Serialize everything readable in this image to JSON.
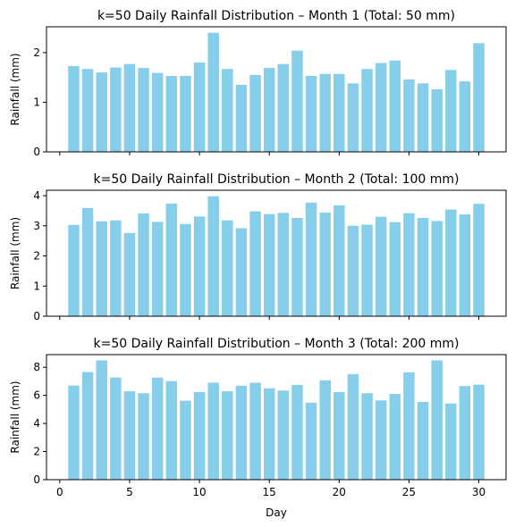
{
  "chart_data": [
    {
      "type": "bar",
      "title": "k=50 Daily Rainfall Distribution – Month 1 (Total: 50 mm)",
      "xlabel": "",
      "ylabel": "Rainfall (mm)",
      "x": [
        1,
        2,
        3,
        4,
        5,
        6,
        7,
        8,
        9,
        10,
        11,
        12,
        13,
        14,
        15,
        16,
        17,
        18,
        19,
        20,
        21,
        22,
        23,
        24,
        25,
        26,
        27,
        28,
        29,
        30
      ],
      "values": [
        1.73,
        1.67,
        1.6,
        1.7,
        1.77,
        1.69,
        1.59,
        1.53,
        1.53,
        1.8,
        2.4,
        1.67,
        1.35,
        1.55,
        1.69,
        1.77,
        2.04,
        1.53,
        1.57,
        1.57,
        1.38,
        1.67,
        1.79,
        1.84,
        1.46,
        1.38,
        1.26,
        1.65,
        1.42,
        2.19
      ],
      "xlim": [
        -0.95,
        31.95
      ],
      "ylim": [
        0,
        2.52
      ],
      "yticks": [
        0,
        1,
        2
      ],
      "xticks": [
        0,
        5,
        10,
        15,
        20,
        25,
        30
      ],
      "show_xtick_labels": false,
      "color": "#87ceeb",
      "grid": false
    },
    {
      "type": "bar",
      "title": "k=50 Daily Rainfall Distribution – Month 2 (Total: 100 mm)",
      "xlabel": "",
      "ylabel": "Rainfall (mm)",
      "x": [
        1,
        2,
        3,
        4,
        5,
        6,
        7,
        8,
        9,
        10,
        11,
        12,
        13,
        14,
        15,
        16,
        17,
        18,
        19,
        20,
        21,
        22,
        23,
        24,
        25,
        26,
        27,
        28,
        29,
        30
      ],
      "values": [
        3.03,
        3.59,
        3.15,
        3.18,
        2.76,
        3.41,
        3.13,
        3.74,
        3.06,
        3.31,
        3.98,
        3.18,
        2.92,
        3.48,
        3.39,
        3.43,
        3.26,
        3.77,
        3.44,
        3.68,
        3.0,
        3.04,
        3.3,
        3.12,
        3.42,
        3.26,
        3.16,
        3.54,
        3.38,
        3.73
      ],
      "xlim": [
        -0.95,
        31.95
      ],
      "ylim": [
        0,
        4.18
      ],
      "yticks": [
        0,
        1,
        2,
        3,
        4
      ],
      "xticks": [
        0,
        5,
        10,
        15,
        20,
        25,
        30
      ],
      "show_xtick_labels": false,
      "color": "#87ceeb",
      "grid": false
    },
    {
      "type": "bar",
      "title": "k=50 Daily Rainfall Distribution – Month 3 (Total: 200 mm)",
      "xlabel": "Day",
      "ylabel": "Rainfall (mm)",
      "x": [
        1,
        2,
        3,
        4,
        5,
        6,
        7,
        8,
        9,
        10,
        11,
        12,
        13,
        14,
        15,
        16,
        17,
        18,
        19,
        20,
        21,
        22,
        23,
        24,
        25,
        26,
        27,
        28,
        29,
        30
      ],
      "values": [
        6.7,
        7.66,
        8.49,
        7.27,
        6.29,
        6.15,
        7.26,
        7.01,
        5.62,
        6.23,
        6.9,
        6.29,
        6.69,
        6.9,
        6.5,
        6.34,
        6.74,
        5.48,
        7.07,
        6.23,
        7.51,
        6.15,
        5.64,
        6.1,
        7.64,
        5.53,
        8.49,
        5.42,
        6.66,
        6.76
      ],
      "xlim": [
        -0.95,
        31.95
      ],
      "ylim": [
        0,
        8.9
      ],
      "yticks": [
        0,
        2,
        4,
        6,
        8
      ],
      "xticks": [
        0,
        5,
        10,
        15,
        20,
        25,
        30
      ],
      "show_xtick_labels": true,
      "color": "#87ceeb",
      "grid": false
    }
  ]
}
